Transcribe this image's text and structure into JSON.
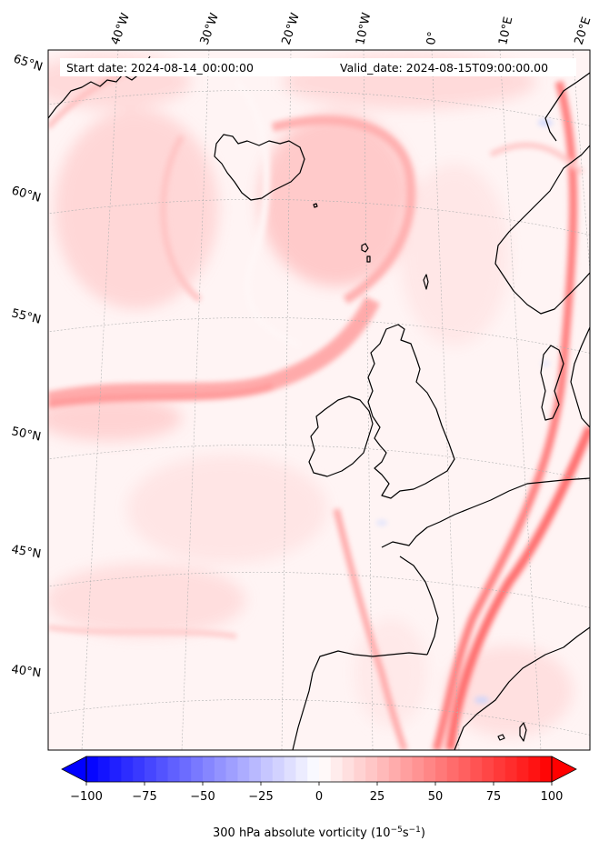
{
  "annotations": {
    "start_date": "Start date: 2024-08-14_00:00:00",
    "valid_date": "Valid_date: 2024-08-15T09:00:00.00"
  },
  "longitude_labels": [
    "40°W",
    "30°W",
    "20°W",
    "10°W",
    "0°",
    "10°E",
    "20°E"
  ],
  "latitude_labels": [
    "65°N",
    "60°N",
    "55°N",
    "50°N",
    "45°N",
    "40°N"
  ],
  "colorbar": {
    "ticks": [
      "−100",
      "−75",
      "−50",
      "−25",
      "0",
      "25",
      "50",
      "75",
      "100"
    ],
    "tick_values": [
      -100,
      -75,
      -50,
      -25,
      0,
      25,
      50,
      75,
      100
    ],
    "range": [
      -100,
      100
    ],
    "extend": "both",
    "label": "300 hPa absolute vorticity (10",
    "label_exp1": "−5",
    "label_mid": "s",
    "label_exp2": "−1",
    "label_end": ")",
    "colormap": "bwr",
    "color_min": "#0000ff",
    "color_mid": "#ffffff",
    "color_max": "#ff0000"
  },
  "colors": {
    "coastline": "#000000",
    "gridline": "#b0b0b0",
    "vorticity_light": "#ffe8e8",
    "vorticity_mid": "#ffb4b4",
    "vorticity_strong": "#ff5a5a"
  }
}
